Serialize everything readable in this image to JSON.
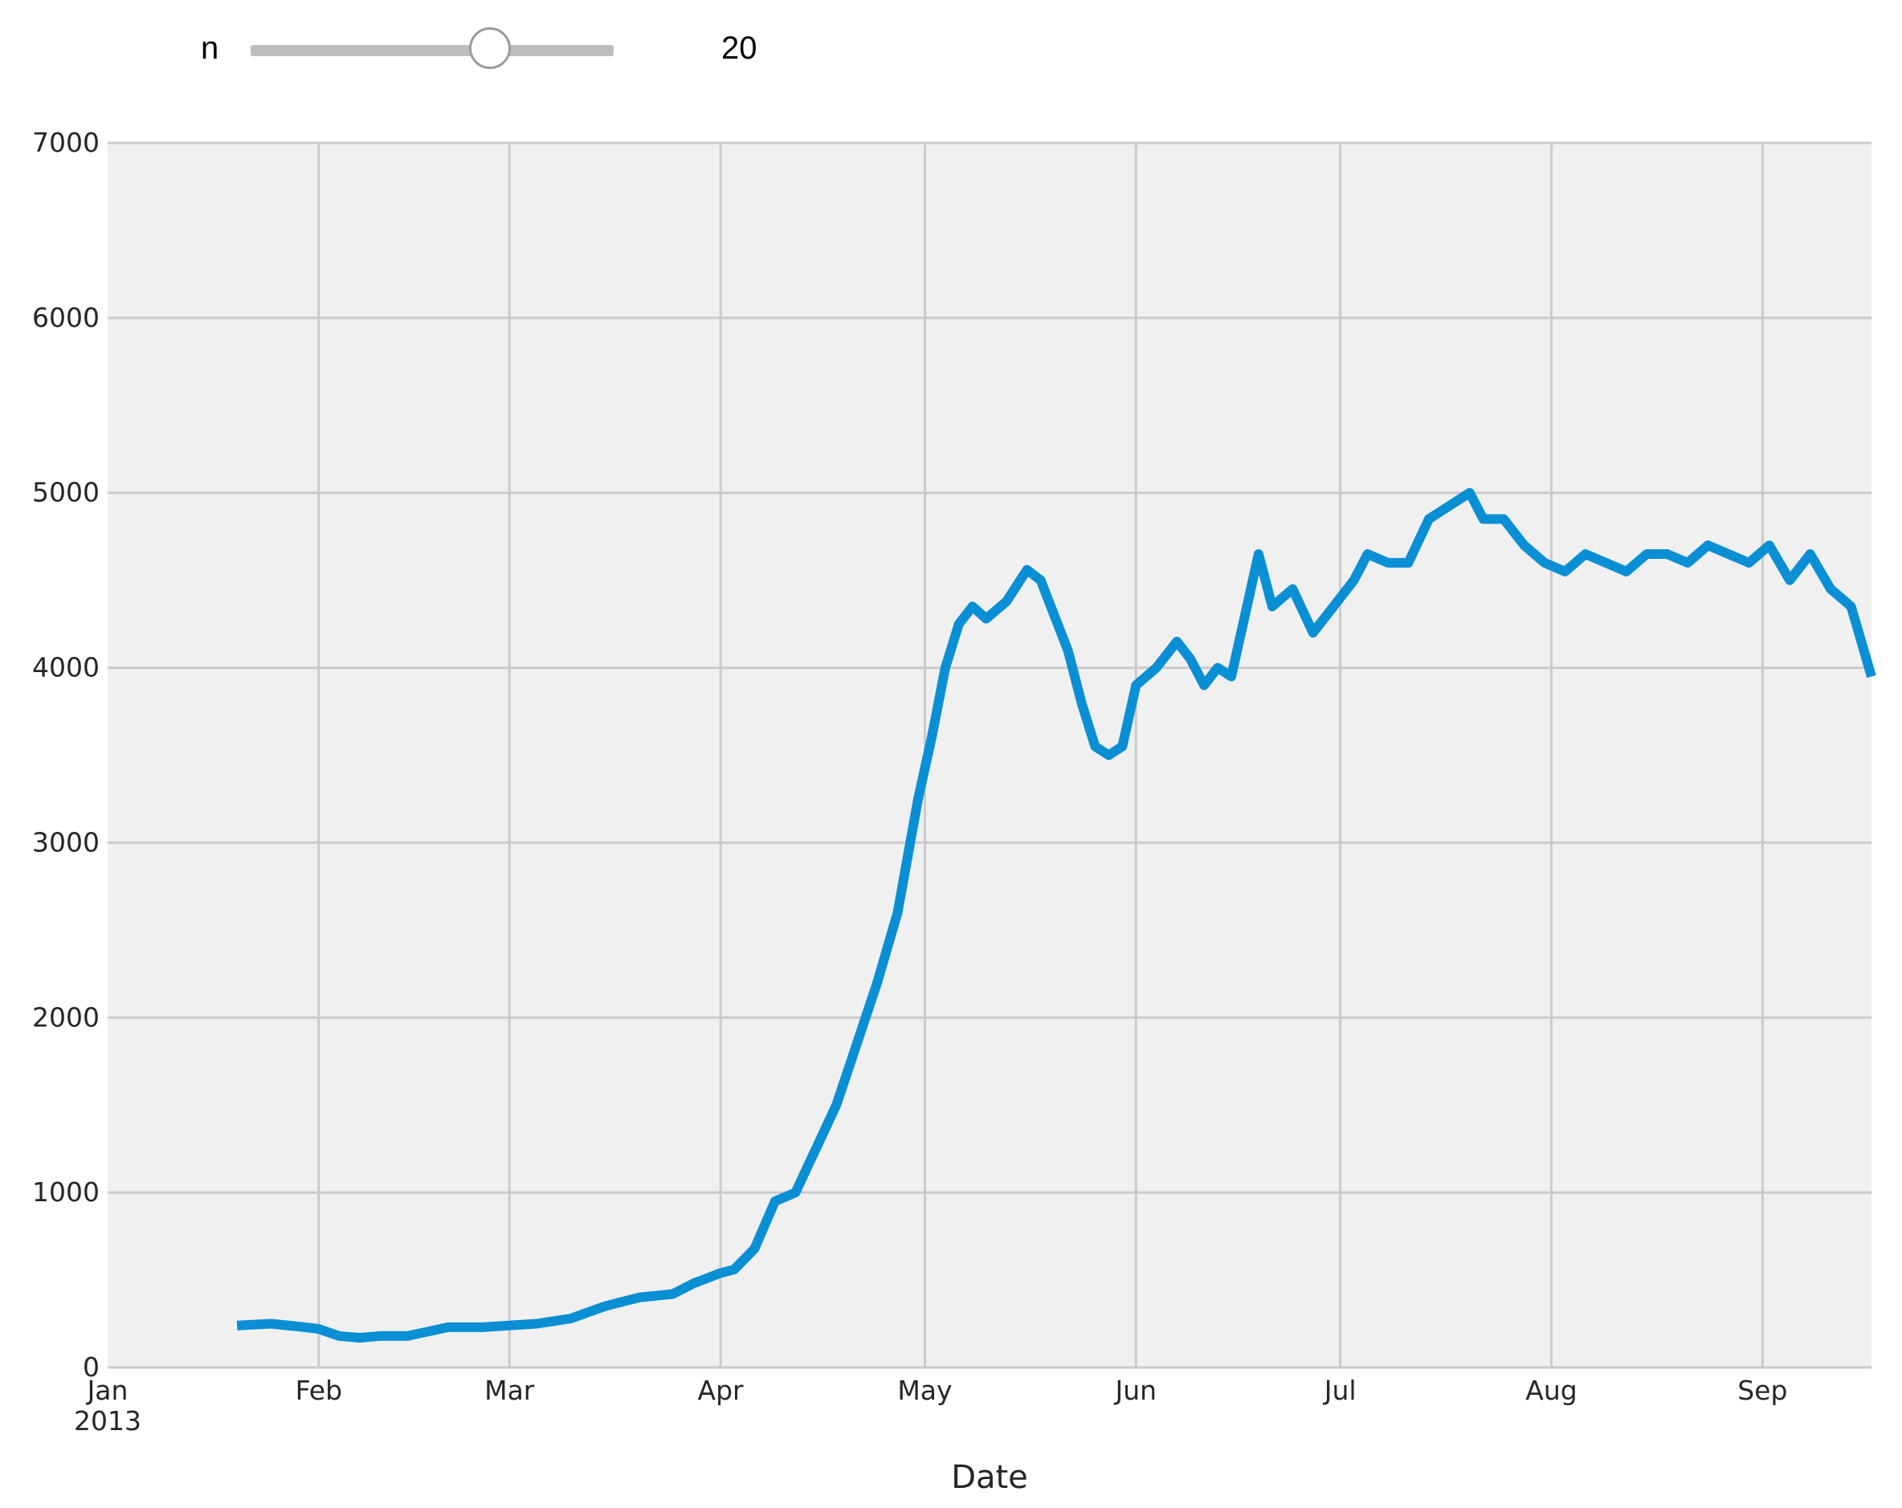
{
  "widget": {
    "label": "n",
    "value": 20,
    "value_text": "20",
    "fill_fraction": 0.66
  },
  "colors": {
    "line": "#0a8fd4",
    "plot_bg": "#f0f0f0",
    "grid": "#cbcbcb",
    "slider_track": "#bdbdbd"
  },
  "chart_data": {
    "type": "line",
    "xlabel": "Date",
    "ylabel": "",
    "x_range": [
      "2013-01-01",
      "2013-09-17"
    ],
    "ylim": [
      0,
      7000
    ],
    "yticks": [
      "0",
      "1000",
      "2000",
      "3000",
      "4000",
      "5000",
      "6000",
      "7000"
    ],
    "xticks": [
      {
        "date": "2013-01-01",
        "label": "Jan",
        "sublabel": "2013"
      },
      {
        "date": "2013-02-01",
        "label": "Feb",
        "sublabel": ""
      },
      {
        "date": "2013-03-01",
        "label": "Mar",
        "sublabel": ""
      },
      {
        "date": "2013-04-01",
        "label": "Apr",
        "sublabel": ""
      },
      {
        "date": "2013-05-01",
        "label": "May",
        "sublabel": ""
      },
      {
        "date": "2013-06-01",
        "label": "Jun",
        "sublabel": ""
      },
      {
        "date": "2013-07-01",
        "label": "Jul",
        "sublabel": ""
      },
      {
        "date": "2013-08-01",
        "label": "Aug",
        "sublabel": ""
      },
      {
        "date": "2013-09-01",
        "label": "Sep",
        "sublabel": ""
      }
    ],
    "grid": true,
    "series": [
      {
        "name": "",
        "x": [
          "2013-01-20",
          "2013-01-25",
          "2013-01-30",
          "2013-02-01",
          "2013-02-04",
          "2013-02-07",
          "2013-02-10",
          "2013-02-14",
          "2013-02-20",
          "2013-02-25",
          "2013-03-01",
          "2013-03-05",
          "2013-03-10",
          "2013-03-15",
          "2013-03-20",
          "2013-03-25",
          "2013-03-28",
          "2013-04-01",
          "2013-04-03",
          "2013-04-06",
          "2013-04-09",
          "2013-04-12",
          "2013-04-15",
          "2013-04-18",
          "2013-04-21",
          "2013-04-24",
          "2013-04-27",
          "2013-04-30",
          "2013-05-02",
          "2013-05-04",
          "2013-05-06",
          "2013-05-08",
          "2013-05-10",
          "2013-05-13",
          "2013-05-16",
          "2013-05-18",
          "2013-05-20",
          "2013-05-22",
          "2013-05-24",
          "2013-05-26",
          "2013-05-28",
          "2013-05-30",
          "2013-06-01",
          "2013-06-04",
          "2013-06-07",
          "2013-06-09",
          "2013-06-11",
          "2013-06-13",
          "2013-06-15",
          "2013-06-17",
          "2013-06-19",
          "2013-06-21",
          "2013-06-24",
          "2013-06-27",
          "2013-06-30",
          "2013-07-03",
          "2013-07-05",
          "2013-07-08",
          "2013-07-11",
          "2013-07-14",
          "2013-07-16",
          "2013-07-18",
          "2013-07-20",
          "2013-07-22",
          "2013-07-25",
          "2013-07-28",
          "2013-07-31",
          "2013-08-03",
          "2013-08-06",
          "2013-08-09",
          "2013-08-12",
          "2013-08-15",
          "2013-08-18",
          "2013-08-21",
          "2013-08-24",
          "2013-08-27",
          "2013-08-30",
          "2013-09-02",
          "2013-09-05",
          "2013-09-08",
          "2013-09-11",
          "2013-09-14",
          "2013-09-17"
        ],
        "values": [
          240,
          250,
          230,
          220,
          180,
          170,
          180,
          180,
          230,
          230,
          240,
          250,
          280,
          350,
          400,
          420,
          480,
          540,
          560,
          680,
          950,
          1000,
          1250,
          1500,
          1850,
          2200,
          2600,
          3250,
          3600,
          4000,
          4250,
          4350,
          4280,
          4380,
          4560,
          4500,
          4300,
          4100,
          3800,
          3550,
          3500,
          3550,
          3900,
          4000,
          4150,
          4050,
          3900,
          4000,
          3950,
          4300,
          4650,
          4350,
          4450,
          4200,
          4350,
          4500,
          4650,
          4600,
          4600,
          4850,
          4900,
          4950,
          5000,
          4850,
          4850,
          4700,
          4600,
          4550,
          4650,
          4600,
          4550,
          4650,
          4650,
          4600,
          4700,
          4650,
          4600,
          4700,
          4500,
          4650,
          4450,
          4350,
          3950
        ]
      }
    ]
  }
}
